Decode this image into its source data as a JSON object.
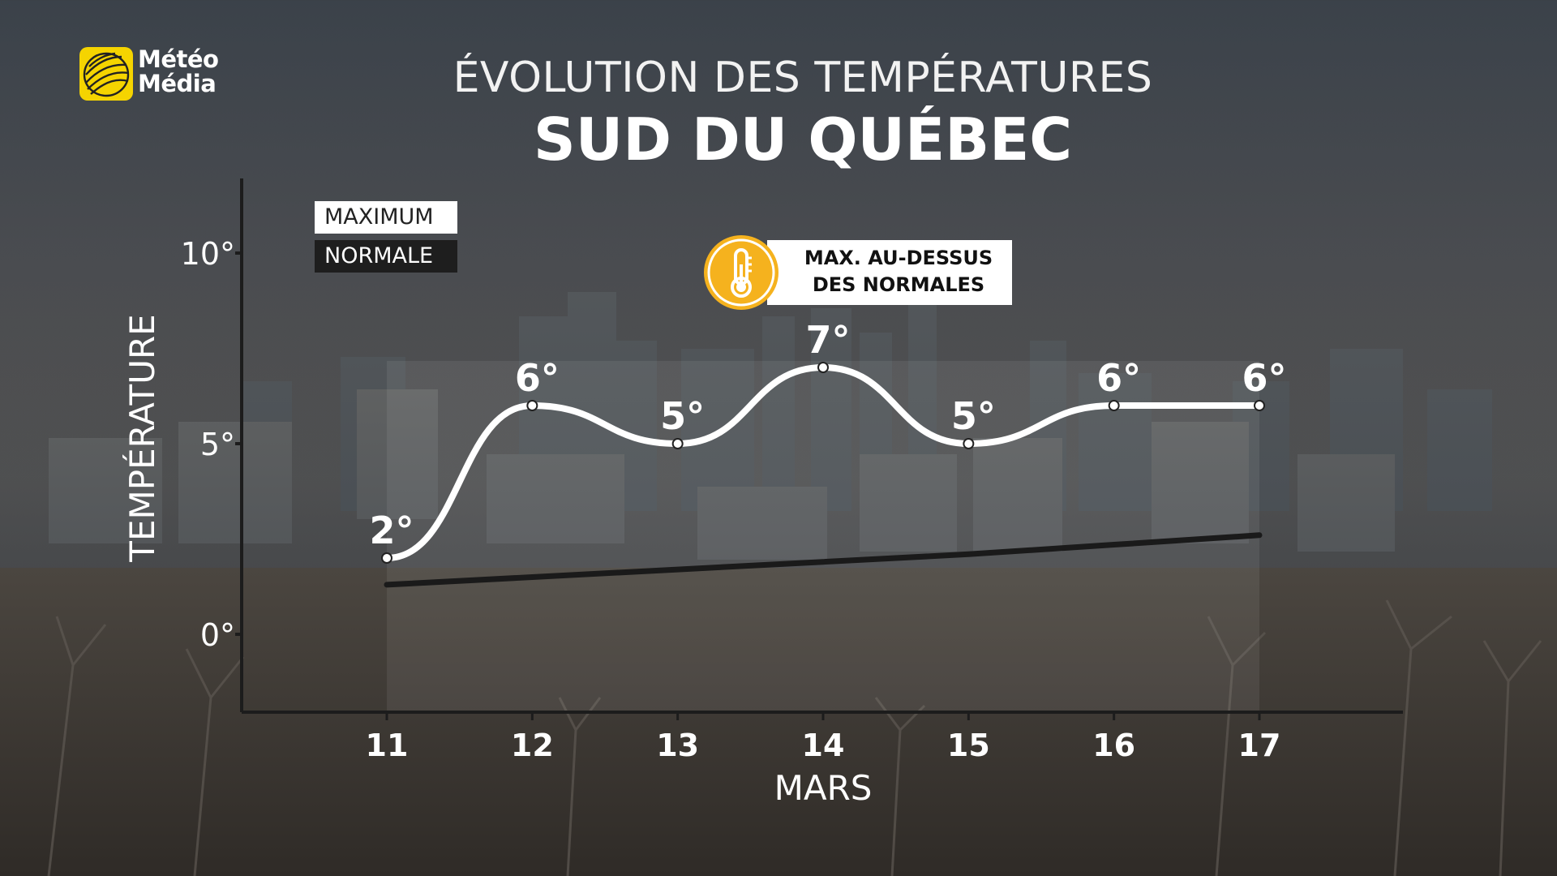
{
  "brand": {
    "logo_line1": "Météo",
    "logo_line2": "Média"
  },
  "header": {
    "title": "ÉVOLUTION DES TEMPÉRATURES",
    "subtitle": "SUD DU QUÉBEC"
  },
  "legend": {
    "maximum": "MAXIMUM",
    "normale": "NORMALE"
  },
  "badge": {
    "line1": "MAX. AU-DESSUS",
    "line2": "DES NORMALES",
    "icon": "thermometer-icon",
    "icon_color": "#f5b21e"
  },
  "chart_data": {
    "type": "line",
    "xlabel": "MARS",
    "ylabel": "TEMPÉRATURE",
    "categories": [
      "11",
      "12",
      "13",
      "14",
      "15",
      "16",
      "17"
    ],
    "ylim": [
      -2,
      12
    ],
    "yticks": [
      0,
      5,
      10
    ],
    "ytick_labels": [
      "0°",
      "5°",
      "10°"
    ],
    "legend_position": "top-left",
    "grid": false,
    "series": [
      {
        "name": "MAXIMUM",
        "color": "#ffffff",
        "values": [
          2,
          6,
          5,
          7,
          5,
          6,
          6
        ],
        "labels": [
          "2°",
          "6°",
          "5°",
          "7°",
          "5°",
          "6°",
          "6°"
        ]
      },
      {
        "name": "NORMALE",
        "color": "#1a1a1a",
        "values": [
          1.3,
          1.5,
          1.7,
          1.9,
          2.1,
          2.35,
          2.6
        ]
      }
    ]
  }
}
